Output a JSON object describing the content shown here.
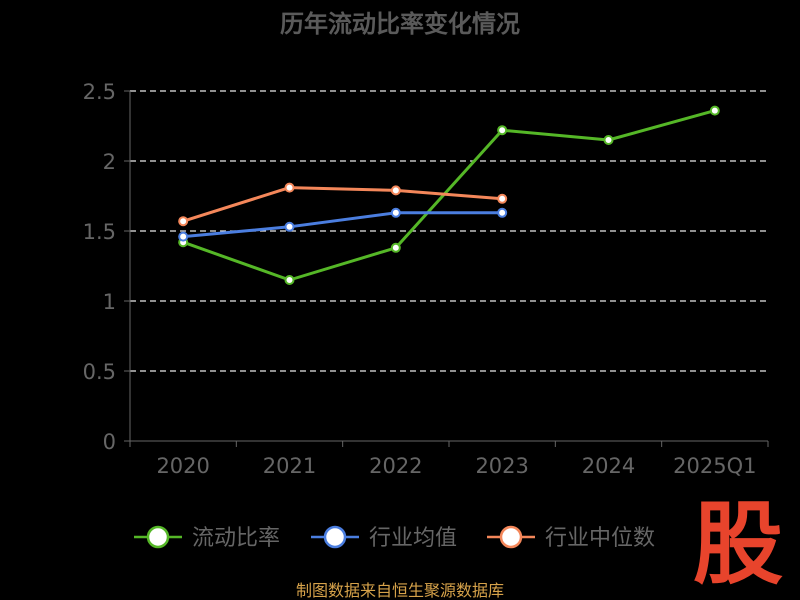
{
  "chart_data": {
    "type": "line",
    "title": "历年流动比率变化情况",
    "categories": [
      "2020",
      "2021",
      "2022",
      "2023",
      "2024",
      "2025Q1"
    ],
    "ylim": [
      0,
      2.5
    ],
    "yticks": [
      "0",
      "0.5",
      "1",
      "1.5",
      "2",
      "2.5"
    ],
    "grid": true,
    "legend_position": "bottom",
    "series": [
      {
        "name": "流动比率",
        "color": "#55b727",
        "values": [
          1.42,
          1.15,
          1.38,
          2.22,
          2.15,
          2.36
        ]
      },
      {
        "name": "行业均值",
        "color": "#4b7ee0",
        "values": [
          1.46,
          1.53,
          1.63,
          1.63,
          null,
          null
        ]
      },
      {
        "name": "行业中位数",
        "color": "#f4875a",
        "values": [
          1.57,
          1.81,
          1.79,
          1.73,
          null,
          null
        ]
      }
    ]
  },
  "logo_text": "股",
  "source": "制图数据来自恒生聚源数据库"
}
